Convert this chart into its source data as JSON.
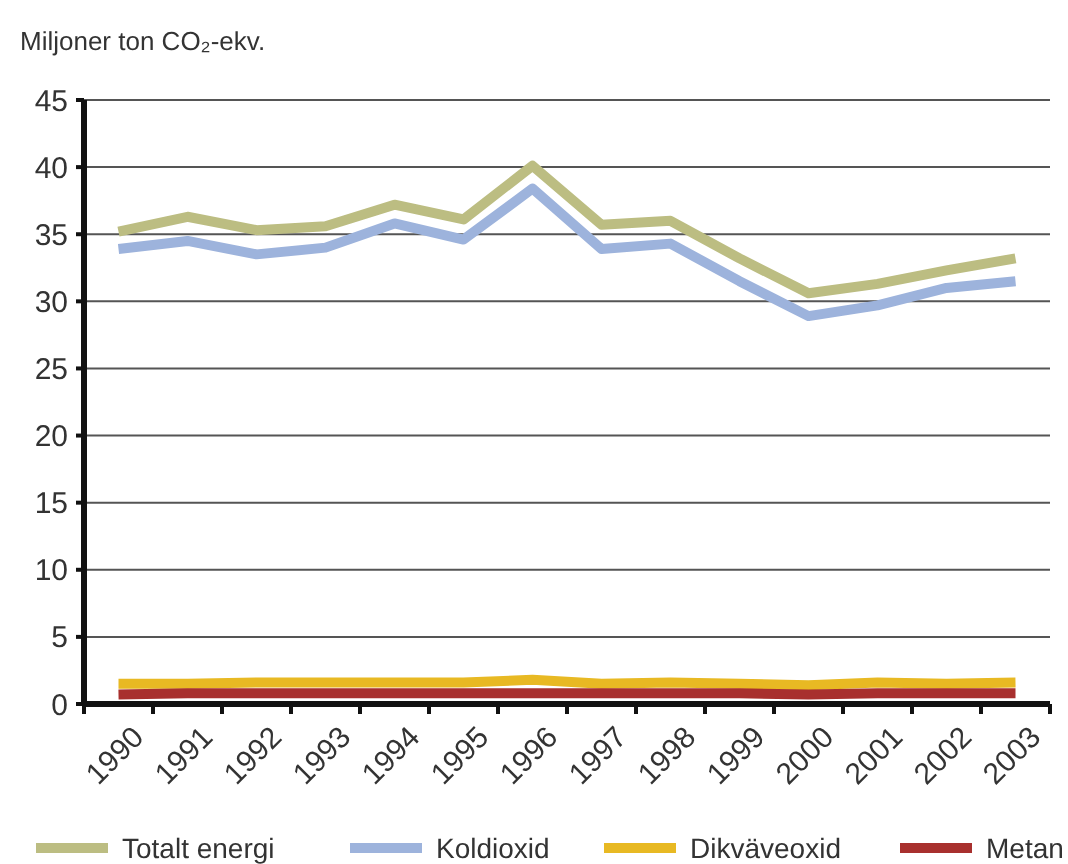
{
  "chart_data": {
    "type": "line",
    "ylabel": "Miljoner ton CO₂-ekv.",
    "categories": [
      "1990",
      "1991",
      "1992",
      "1993",
      "1994",
      "1995",
      "1996",
      "1997",
      "1998",
      "1999",
      "2000",
      "2001",
      "2002",
      "2003"
    ],
    "series": [
      {
        "name": "Totalt energi",
        "color": "#bcbd82",
        "values": [
          35.2,
          36.3,
          35.3,
          35.6,
          37.2,
          36.1,
          40.1,
          35.7,
          36.0,
          33.2,
          30.6,
          31.3,
          32.3,
          33.2
        ]
      },
      {
        "name": "Koldioxid",
        "color": "#9db3dc",
        "values": [
          33.9,
          34.5,
          33.5,
          34.0,
          35.8,
          34.6,
          38.4,
          33.9,
          34.3,
          31.5,
          28.9,
          29.7,
          31.0,
          31.5
        ]
      },
      {
        "name": "Dikväveoxid",
        "color": "#e8b923",
        "values": [
          1.5,
          1.5,
          1.6,
          1.6,
          1.6,
          1.6,
          1.8,
          1.5,
          1.6,
          1.5,
          1.4,
          1.6,
          1.5,
          1.6
        ]
      },
      {
        "name": "Metan",
        "color": "#a8302e",
        "values": [
          0.7,
          0.8,
          0.8,
          0.8,
          0.8,
          0.8,
          0.8,
          0.8,
          0.8,
          0.8,
          0.7,
          0.8,
          0.8,
          0.8
        ]
      }
    ],
    "ylim": [
      0,
      45
    ],
    "yticks": [
      0,
      5,
      10,
      15,
      20,
      25,
      30,
      35,
      40,
      45
    ],
    "grid": "y",
    "legend": "bottom",
    "marker": "none",
    "line_style": "solid"
  }
}
